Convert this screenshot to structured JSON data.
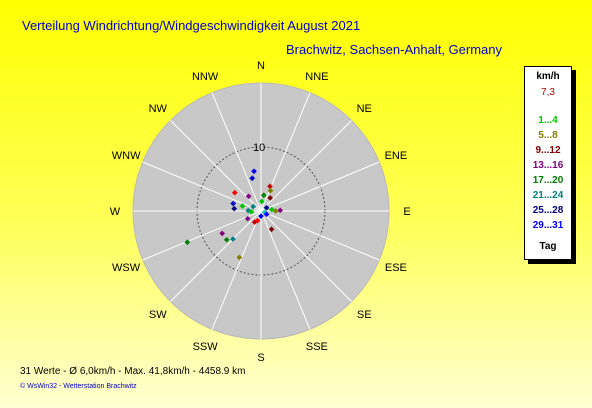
{
  "header": {
    "title": "Verteilung Windrichtung/Windgeschwindigkeit  August 2021",
    "location": "Brachwitz, Sachsen-Anhalt, Germany"
  },
  "chart_data": {
    "type": "scatter",
    "subtype": "polar-wind-rose",
    "directions": [
      "N",
      "NNE",
      "NE",
      "ENE",
      "E",
      "ESE",
      "SE",
      "SSE",
      "S",
      "SSW",
      "SW",
      "WSW",
      "W",
      "WNW",
      "NW",
      "NNW"
    ],
    "radial_tick_label": "10",
    "radial_tick_value": 10,
    "r_max": 20,
    "points": [
      {
        "dir_deg": 350,
        "r": 6.3,
        "color": "#0000ff"
      },
      {
        "dir_deg": 345,
        "r": 5.3,
        "color": "#0000c8"
      },
      {
        "dir_deg": 20,
        "r": 4.1,
        "color": "#c80000"
      },
      {
        "dir_deg": 25,
        "r": 3.5,
        "color": "#808000"
      },
      {
        "dir_deg": 10,
        "r": 2.5,
        "color": "#008000"
      },
      {
        "dir_deg": 305,
        "r": 5.0,
        "color": "#ff0000"
      },
      {
        "dir_deg": 320,
        "r": 3.0,
        "color": "#800080"
      },
      {
        "dir_deg": 35,
        "r": 2.5,
        "color": "#800000"
      },
      {
        "dir_deg": 5,
        "r": 1.5,
        "color": "#00c800"
      },
      {
        "dir_deg": 285,
        "r": 4.5,
        "color": "#0000c8"
      },
      {
        "dir_deg": 285,
        "r": 3.0,
        "color": "#00c800"
      },
      {
        "dir_deg": 272,
        "r": 2.0,
        "color": "#008080"
      },
      {
        "dir_deg": 82,
        "r": 1.7,
        "color": "#00c800"
      },
      {
        "dir_deg": 88,
        "r": 3.0,
        "color": "#800080"
      },
      {
        "dir_deg": 90,
        "r": 2.3,
        "color": "#808000"
      },
      {
        "dir_deg": 265,
        "r": 1.5,
        "color": "#00c800"
      },
      {
        "dir_deg": 275,
        "r": 4.2,
        "color": "#000080"
      },
      {
        "dir_deg": 150,
        "r": 3.3,
        "color": "#800000"
      },
      {
        "dir_deg": 240,
        "r": 2.4,
        "color": "#800080"
      },
      {
        "dir_deg": 200,
        "r": 1.6,
        "color": "#ff0000"
      },
      {
        "dir_deg": 180,
        "r": 0.8,
        "color": "#0000ff"
      },
      {
        "dir_deg": 110,
        "r": 0.6,
        "color": "#00c8c8"
      },
      {
        "dir_deg": 240,
        "r": 7.0,
        "color": "#800080"
      },
      {
        "dir_deg": 230,
        "r": 7.0,
        "color": "#008000"
      },
      {
        "dir_deg": 225,
        "r": 6.2,
        "color": "#008080"
      },
      {
        "dir_deg": 205,
        "r": 8.0,
        "color": "#808000"
      },
      {
        "dir_deg": 247,
        "r": 12.5,
        "color": "#008000"
      },
      {
        "dir_deg": 210,
        "r": 2.0,
        "color": "#c80000"
      },
      {
        "dir_deg": 120,
        "r": 1.0,
        "color": "#0000ff"
      },
      {
        "dir_deg": 300,
        "r": 1.4,
        "color": "#008080"
      },
      {
        "dir_deg": 60,
        "r": 1.0,
        "color": "#000080"
      }
    ]
  },
  "legend": {
    "unit": "km/h",
    "average": {
      "label": "7,3",
      "color": "#c80000"
    },
    "bins": [
      {
        "label": "1...4",
        "color": "#00c800"
      },
      {
        "label": "5...8",
        "color": "#808000"
      },
      {
        "label": "9...12",
        "color": "#800000"
      },
      {
        "label": "13...16",
        "color": "#800080"
      },
      {
        "label": "17...20",
        "color": "#008000"
      },
      {
        "label": "21...24",
        "color": "#008080"
      },
      {
        "label": "25...28",
        "color": "#000080"
      },
      {
        "label": "29...31",
        "color": "#0000ff"
      }
    ],
    "footer_label": "Tag"
  },
  "footer": {
    "stats": "31 Werte   -   Ø 6,0km/h   -   Max. 41,8km/h   -   4458.9 km",
    "credit": "© WsWin32   -   Wetterstation Brachwitz"
  }
}
